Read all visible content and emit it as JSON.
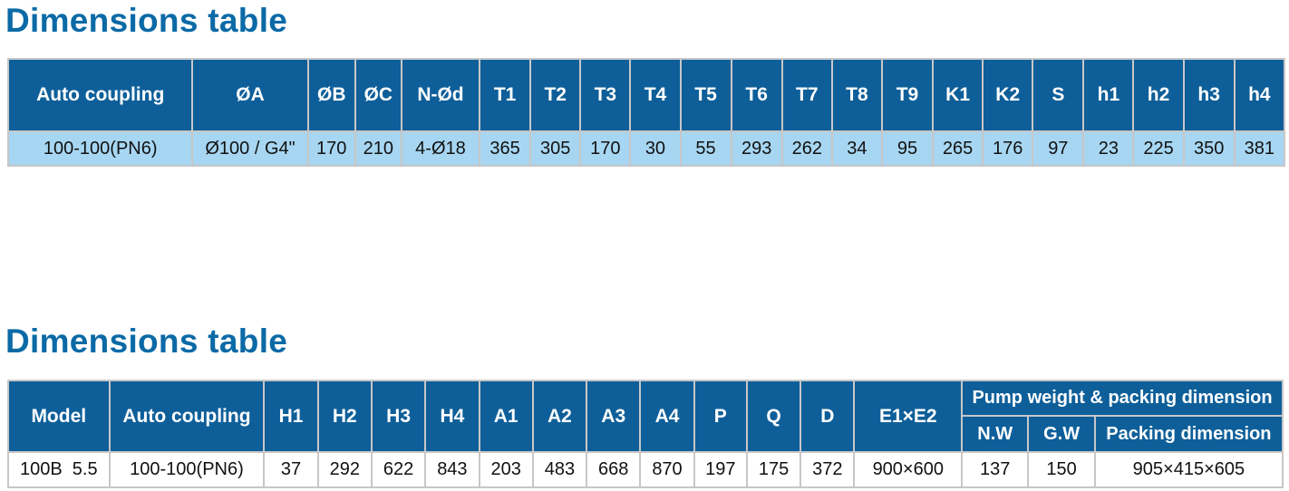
{
  "tables": [
    {
      "title": "Dimensions table",
      "headers": [
        "Auto coupling",
        "ØA",
        "ØB",
        "ØC",
        "N-Ød",
        "T1",
        "T2",
        "T3",
        "T4",
        "T5",
        "T6",
        "T7",
        "T8",
        "T9",
        "K1",
        "K2",
        "S",
        "h1",
        "h2",
        "h3",
        "h4"
      ],
      "rows": [
        [
          "100-100(PN6)",
          "Ø100 / G4\"",
          "170",
          "210",
          "4-Ø18",
          "365",
          "305",
          "170",
          "30",
          "55",
          "293",
          "262",
          "34",
          "95",
          "265",
          "176",
          "97",
          "23",
          "225",
          "350",
          "381"
        ]
      ]
    },
    {
      "title": "Dimensions table",
      "headers": [
        "Model",
        "Auto coupling",
        "H1",
        "H2",
        "H3",
        "H4",
        "A1",
        "A2",
        "A3",
        "A4",
        "P",
        "Q",
        "D",
        "E1×E2"
      ],
      "group_header": "Pump weight & packing dimension",
      "sub_headers": [
        "N.W",
        "G.W",
        "Packing dimension"
      ],
      "rows": [
        [
          "100B  5.5",
          "100-100(PN6)",
          "37",
          "292",
          "622",
          "843",
          "203",
          "483",
          "668",
          "870",
          "197",
          "175",
          "372",
          "900×600",
          "137",
          "150",
          "905×415×605"
        ]
      ]
    }
  ],
  "colors": {
    "title": "#0b6aa6",
    "header_bg": "#0e5f99",
    "header_text": "#ffffff",
    "data_row_bg_table1": "#a7d6f2",
    "data_row_bg_table2": "#ffffff",
    "border": "#c7c7c7"
  }
}
